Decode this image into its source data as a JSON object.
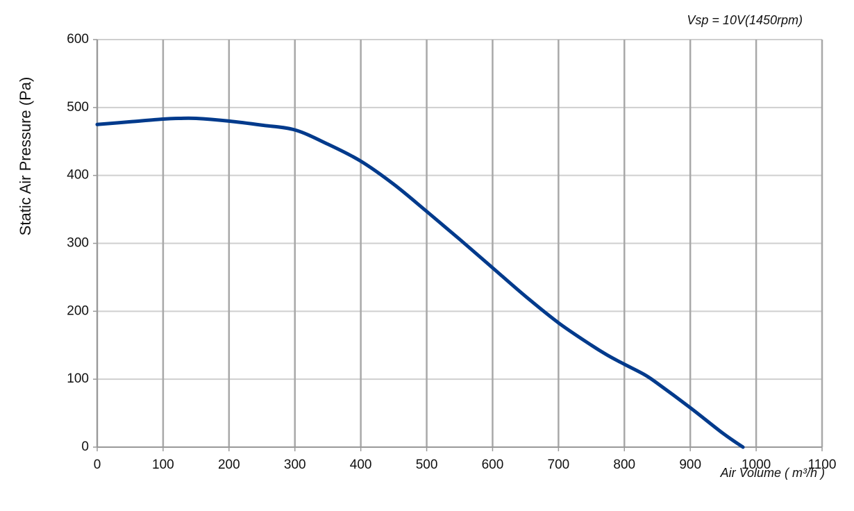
{
  "chart_data": {
    "type": "line",
    "annotation": "Vsp = 10V(1450rpm)",
    "x_label": "Air Volume ( m³/h )",
    "y_label": "Static Air Pressure  (Pa)",
    "x": [
      0,
      50,
      100,
      125,
      150,
      200,
      250,
      300,
      350,
      400,
      450,
      500,
      550,
      600,
      650,
      700,
      750,
      775,
      800,
      830,
      850,
      900,
      950,
      980
    ],
    "series": [
      {
        "name": "Vsp = 10V",
        "color": "#003a8c",
        "values": [
          475,
          479,
          483,
          484,
          484,
          480,
          474,
          467,
          446,
          421,
          387,
          347,
          306,
          264,
          222,
          183,
          150,
          135,
          122,
          107,
          94,
          58,
          20,
          0
        ]
      }
    ],
    "xlim": [
      0,
      1100
    ],
    "xticks": [
      0,
      100,
      200,
      300,
      400,
      500,
      600,
      700,
      800,
      900,
      1000,
      1100
    ],
    "ylim": [
      0,
      600
    ],
    "yticks": [
      0,
      100,
      200,
      300,
      400,
      500,
      600
    ],
    "grid": true
  }
}
